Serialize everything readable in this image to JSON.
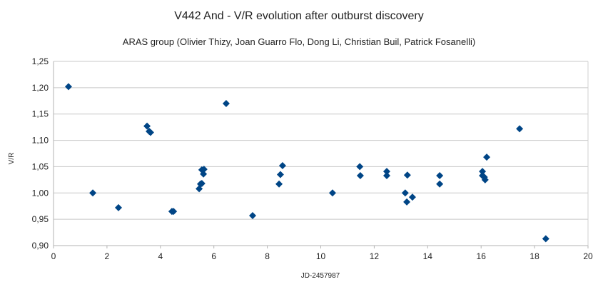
{
  "chart_data": {
    "type": "scatter",
    "title": "V442 And - V/R evolution after outburst discovery",
    "subtitle": "ARAS group (Olivier Thizy, Joan Guarro Flo, Dong Li, Christian Buil, Patrick Fosanelli)",
    "xlabel": "JD-2457987",
    "ylabel": "V/R",
    "xlim": [
      0,
      20
    ],
    "ylim": [
      0.9,
      1.25
    ],
    "x_ticks": [
      "0",
      "2",
      "4",
      "6",
      "8",
      "10",
      "12",
      "14",
      "16",
      "18",
      "20"
    ],
    "y_ticks": [
      "0,90",
      "0,95",
      "1,00",
      "1,05",
      "1,10",
      "1,15",
      "1,20",
      "1,25"
    ],
    "grid": "horizontal",
    "marker": "diamond",
    "color": "#004586",
    "points": [
      [
        0.56,
        1.202
      ],
      [
        1.47,
        1.0
      ],
      [
        2.43,
        0.972
      ],
      [
        3.5,
        1.127
      ],
      [
        3.58,
        1.117
      ],
      [
        3.63,
        1.115
      ],
      [
        4.43,
        0.965
      ],
      [
        4.49,
        0.965
      ],
      [
        5.45,
        1.008
      ],
      [
        5.5,
        1.017
      ],
      [
        5.55,
        1.018
      ],
      [
        5.55,
        1.044
      ],
      [
        5.61,
        1.036
      ],
      [
        5.63,
        1.045
      ],
      [
        6.46,
        1.17
      ],
      [
        7.45,
        0.957
      ],
      [
        8.44,
        1.017
      ],
      [
        8.49,
        1.035
      ],
      [
        8.57,
        1.052
      ],
      [
        10.44,
        1.0
      ],
      [
        11.46,
        1.05
      ],
      [
        11.48,
        1.033
      ],
      [
        12.47,
        1.041
      ],
      [
        12.47,
        1.033
      ],
      [
        13.16,
        1.0
      ],
      [
        13.22,
        0.983
      ],
      [
        13.24,
        1.034
      ],
      [
        13.43,
        0.992
      ],
      [
        14.45,
        1.033
      ],
      [
        14.45,
        1.017
      ],
      [
        16.05,
        1.041
      ],
      [
        16.05,
        1.033
      ],
      [
        16.12,
        1.03
      ],
      [
        16.15,
        1.025
      ],
      [
        16.21,
        1.068
      ],
      [
        17.44,
        1.122
      ],
      [
        18.42,
        0.913
      ]
    ]
  }
}
